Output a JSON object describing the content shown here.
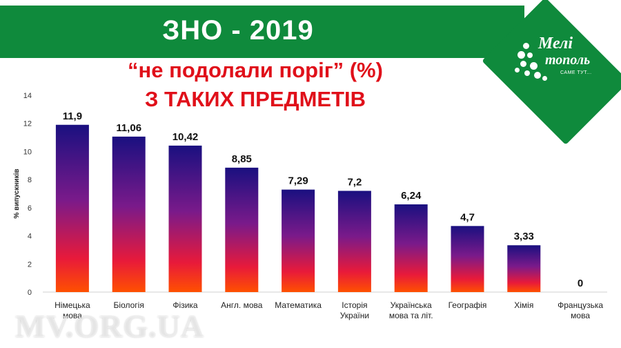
{
  "header": {
    "title": "ЗНО - 2019",
    "subtitle_line1": "“не подолали поріг” (%)",
    "subtitle_line2": "З ТАКИХ ПРЕДМЕТІВ"
  },
  "logo": {
    "word1": "Мелі",
    "word2": "тополь",
    "tagline": "САМЕ ТУТ..."
  },
  "watermark": "MV.ORG.UA",
  "colors": {
    "banner": "#0f8a3c",
    "accent_red": "#e0101a",
    "bar_top": "#1a1080",
    "bar_bottom": "#ff4a00"
  },
  "chart_data": {
    "type": "bar",
    "ylabel": "% випускників",
    "ylim": [
      0,
      14
    ],
    "yticks": [
      0,
      2,
      4,
      6,
      8,
      10,
      12,
      14
    ],
    "grid": false,
    "categories": [
      [
        "Німецька",
        "мова"
      ],
      [
        "Біологія"
      ],
      [
        "Фізика"
      ],
      [
        "Англ. мова"
      ],
      [
        "Математика"
      ],
      [
        "Історія",
        "України"
      ],
      [
        "Українська",
        "мова та літ."
      ],
      [
        "Географія"
      ],
      [
        "Хімія"
      ],
      [
        "Французька",
        "мова"
      ]
    ],
    "values": [
      11.9,
      11.06,
      10.42,
      8.85,
      7.29,
      7.2,
      6.24,
      4.7,
      3.33,
      0
    ],
    "value_labels": [
      "11,9",
      "11,06",
      "10,42",
      "8,85",
      "7,29",
      "7,2",
      "6,24",
      "4,7",
      "3,33",
      "0"
    ]
  }
}
